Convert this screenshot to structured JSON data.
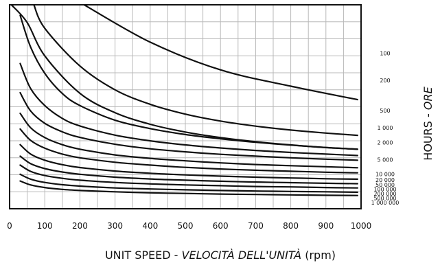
{
  "chart_data": {
    "type": "line",
    "title": "",
    "xlabel": {
      "prefix": "UNIT SPEED - ",
      "italic": "VELOCITÀ DELL'UNITÀ",
      "suffix": " (rpm)"
    },
    "ylabel": {
      "prefix": "HOURS - ",
      "italic": "ORE"
    },
    "xlim": [
      0,
      1000
    ],
    "x_ticks": [
      0,
      100,
      200,
      300,
      400,
      500,
      600,
      700,
      800,
      900,
      1000
    ],
    "x_tick_labels": [
      "0",
      "100",
      "200",
      "300",
      "400",
      "500",
      "600",
      "700",
      "800",
      "900",
      "1000"
    ],
    "ylim": [
      0,
      1
    ],
    "y_tick_labels_shown": false,
    "grid": true,
    "line_color": "#111111",
    "grid_color": "#b8b8b8",
    "series": [
      {
        "name": "100",
        "points": [
          [
            212,
            1.0
          ],
          [
            400,
            0.817
          ],
          [
            600,
            0.681
          ],
          [
            800,
            0.601
          ],
          [
            990,
            0.535
          ]
        ]
      },
      {
        "name": "200",
        "points": [
          [
            69,
            1.0
          ],
          [
            100,
            0.885
          ],
          [
            200,
            0.7
          ],
          [
            300,
            0.583
          ],
          [
            400,
            0.512
          ],
          [
            500,
            0.464
          ],
          [
            600,
            0.43
          ],
          [
            700,
            0.405
          ],
          [
            800,
            0.386
          ],
          [
            900,
            0.371
          ],
          [
            990,
            0.36
          ]
        ]
      },
      {
        "name": "500",
        "points": [
          [
            5,
            1.0
          ],
          [
            50,
            0.913
          ],
          [
            100,
            0.75
          ],
          [
            200,
            0.566
          ],
          [
            300,
            0.471
          ],
          [
            400,
            0.414
          ],
          [
            500,
            0.376
          ],
          [
            600,
            0.349
          ],
          [
            700,
            0.329
          ],
          [
            800,
            0.313
          ],
          [
            900,
            0.3
          ],
          [
            990,
            0.292
          ]
        ]
      },
      {
        "name": "1 000",
        "points": [
          [
            30,
            0.948
          ],
          [
            60,
            0.792
          ],
          [
            100,
            0.664
          ],
          [
            150,
            0.565
          ],
          [
            200,
            0.506
          ],
          [
            300,
            0.434
          ],
          [
            400,
            0.393
          ],
          [
            500,
            0.364
          ],
          [
            600,
            0.343
          ],
          [
            700,
            0.326
          ],
          [
            800,
            0.312
          ],
          [
            900,
            0.3
          ],
          [
            990,
            0.292
          ]
        ]
      },
      {
        "name": "2 000",
        "points": [
          [
            30,
            0.712
          ],
          [
            60,
            0.589
          ],
          [
            100,
            0.506
          ],
          [
            150,
            0.443
          ],
          [
            200,
            0.406
          ],
          [
            300,
            0.361
          ],
          [
            400,
            0.333
          ],
          [
            500,
            0.313
          ],
          [
            600,
            0.298
          ],
          [
            700,
            0.286
          ],
          [
            800,
            0.276
          ],
          [
            900,
            0.268
          ],
          [
            990,
            0.261
          ]
        ]
      },
      {
        "name": "5 000",
        "points": [
          [
            30,
            0.569
          ],
          [
            60,
            0.479
          ],
          [
            100,
            0.419
          ],
          [
            150,
            0.377
          ],
          [
            200,
            0.35
          ],
          [
            300,
            0.316
          ],
          [
            400,
            0.294
          ],
          [
            500,
            0.279
          ],
          [
            600,
            0.267
          ],
          [
            700,
            0.258
          ],
          [
            800,
            0.25
          ],
          [
            900,
            0.243
          ],
          [
            990,
            0.238
          ]
        ]
      },
      {
        "name": "10 000",
        "points": [
          [
            30,
            0.468
          ],
          [
            60,
            0.397
          ],
          [
            100,
            0.349
          ],
          [
            150,
            0.314
          ],
          [
            200,
            0.292
          ],
          [
            300,
            0.264
          ],
          [
            400,
            0.247
          ],
          [
            500,
            0.235
          ],
          [
            600,
            0.225
          ],
          [
            700,
            0.217
          ],
          [
            800,
            0.211
          ],
          [
            900,
            0.206
          ],
          [
            990,
            0.201
          ]
        ]
      },
      {
        "name": "20 000",
        "points": [
          [
            30,
            0.391
          ],
          [
            60,
            0.335
          ],
          [
            100,
            0.297
          ],
          [
            150,
            0.268
          ],
          [
            200,
            0.25
          ],
          [
            300,
            0.228
          ],
          [
            400,
            0.214
          ],
          [
            500,
            0.203
          ],
          [
            600,
            0.195
          ],
          [
            700,
            0.189
          ],
          [
            800,
            0.184
          ],
          [
            900,
            0.179
          ],
          [
            990,
            0.176
          ]
        ]
      },
      {
        "name": "50 000",
        "points": [
          [
            30,
            0.314
          ],
          [
            60,
            0.268
          ],
          [
            100,
            0.238
          ],
          [
            150,
            0.216
          ],
          [
            200,
            0.202
          ],
          [
            300,
            0.185
          ],
          [
            400,
            0.174
          ],
          [
            500,
            0.166
          ],
          [
            600,
            0.16
          ],
          [
            700,
            0.155
          ],
          [
            800,
            0.151
          ],
          [
            900,
            0.147
          ],
          [
            990,
            0.145
          ]
        ]
      },
      {
        "name": "100 000",
        "points": [
          [
            30,
            0.258
          ],
          [
            60,
            0.221
          ],
          [
            100,
            0.197
          ],
          [
            150,
            0.18
          ],
          [
            200,
            0.169
          ],
          [
            300,
            0.155
          ],
          [
            400,
            0.146
          ],
          [
            500,
            0.14
          ],
          [
            600,
            0.135
          ],
          [
            700,
            0.131
          ],
          [
            800,
            0.128
          ],
          [
            900,
            0.125
          ],
          [
            990,
            0.123
          ]
        ]
      },
      {
        "name": "200 000",
        "points": [
          [
            30,
            0.214
          ],
          [
            60,
            0.183
          ],
          [
            100,
            0.163
          ],
          [
            150,
            0.149
          ],
          [
            200,
            0.14
          ],
          [
            300,
            0.129
          ],
          [
            400,
            0.122
          ],
          [
            500,
            0.117
          ],
          [
            600,
            0.113
          ],
          [
            700,
            0.109
          ],
          [
            800,
            0.107
          ],
          [
            900,
            0.104
          ],
          [
            990,
            0.102
          ]
        ]
      },
      {
        "name": "500 000",
        "points": [
          [
            30,
            0.169
          ],
          [
            60,
            0.145
          ],
          [
            100,
            0.129
          ],
          [
            150,
            0.118
          ],
          [
            200,
            0.111
          ],
          [
            300,
            0.102
          ],
          [
            400,
            0.097
          ],
          [
            500,
            0.093
          ],
          [
            600,
            0.09
          ],
          [
            700,
            0.087
          ],
          [
            800,
            0.085
          ],
          [
            900,
            0.083
          ],
          [
            990,
            0.081
          ]
        ]
      },
      {
        "name": "1 000 000",
        "points": [
          [
            30,
            0.136
          ],
          [
            60,
            0.117
          ],
          [
            100,
            0.104
          ],
          [
            150,
            0.095
          ],
          [
            200,
            0.09
          ],
          [
            300,
            0.083
          ],
          [
            400,
            0.078
          ],
          [
            500,
            0.075
          ],
          [
            600,
            0.072
          ],
          [
            700,
            0.07
          ],
          [
            800,
            0.068
          ],
          [
            900,
            0.066
          ],
          [
            990,
            0.065
          ]
        ]
      }
    ],
    "hour_labels": [
      {
        "text": "100",
        "y": 0.762
      },
      {
        "text": "200",
        "y": 0.63
      },
      {
        "text": "500",
        "y": 0.482
      },
      {
        "text": "1 000",
        "y": 0.397
      },
      {
        "text": "2 000",
        "y": 0.325
      },
      {
        "text": "5 000",
        "y": 0.24
      },
      {
        "text": "10 000",
        "y": 0.17
      },
      {
        "text": "20 000",
        "y": 0.142
      },
      {
        "text": "50 000",
        "y": 0.118
      },
      {
        "text": "100 000",
        "y": 0.096
      },
      {
        "text": "200 000",
        "y": 0.074
      },
      {
        "text": "500 000",
        "y": 0.052
      },
      {
        "text": "1 000 000",
        "y": 0.03
      }
    ]
  }
}
